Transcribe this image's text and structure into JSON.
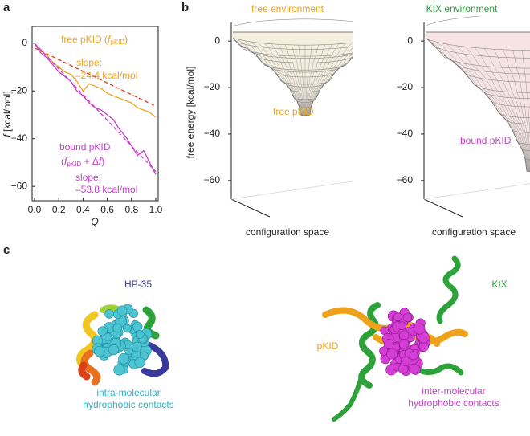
{
  "panel_labels": [
    "a",
    "b",
    "c"
  ],
  "chart_data": [
    {
      "type": "line",
      "xlabel": "Q",
      "ylabel": [
        "f",
        "[kcal/mol]"
      ],
      "xlim": [
        -0.02,
        1.02
      ],
      "ylim": [
        -66,
        7
      ],
      "xticks": [
        {
          "value": 0,
          "label": "0.0"
        },
        {
          "value": 0.2,
          "label": "0.2"
        },
        {
          "value": 0.4,
          "label": "0.4"
        },
        {
          "value": 0.6,
          "label": "0.6"
        },
        {
          "value": 0.8,
          "label": "0.8"
        },
        {
          "value": 1,
          "label": "1.0"
        }
      ],
      "yticks": [
        0,
        {
          "value": -20,
          "label": "−20"
        },
        {
          "value": -40,
          "label": "−40"
        },
        {
          "value": -60,
          "label": "−60"
        }
      ],
      "x": [
        0,
        0.05,
        0.1,
        0.15,
        0.2,
        0.25,
        0.3,
        0.35,
        0.4,
        0.45,
        0.5,
        0.55,
        0.6,
        0.65,
        0.7,
        0.75,
        0.8,
        0.85,
        0.9,
        0.95,
        1
      ],
      "series": [
        {
          "color": "#eea21b",
          "values": [
            0,
            -3,
            -5,
            -8,
            -10,
            -12,
            -13,
            -16,
            -20,
            -17,
            -18,
            -19,
            -21,
            -22,
            -23,
            -24,
            -25,
            -27,
            -28,
            -29,
            -31
          ]
        },
        {
          "color": "#c63fc6",
          "values": [
            0,
            -4,
            -6,
            -9,
            -12,
            -14,
            -16,
            -20,
            -22,
            -25,
            -27,
            -28,
            -30,
            -32,
            -36,
            -39,
            -43,
            -47,
            -45,
            -50,
            -55
          ]
        },
        {
          "color": "#d6431a",
          "dashed": true,
          "x": [
            0,
            1
          ],
          "values": [
            -2,
            -26.4
          ]
        },
        {
          "color": "#c63fc6",
          "dashed": true,
          "x": [
            0,
            1
          ],
          "values": [
            0,
            -53.8
          ]
        }
      ],
      "annotations": {
        "free": [
          "free pKID (",
          "f",
          "pKID",
          ")"
        ],
        "free_slope": [
          "slope:",
          "–24.4 kcal/mol"
        ],
        "bound": [
          "bound pKID",
          "(",
          "f",
          "pKID",
          " + Δ",
          "f",
          ")"
        ],
        "bound_slope": [
          "slope:",
          "–53.8 kcal/mol"
        ]
      }
    },
    {
      "type": "surface",
      "title": "free environment",
      "title_color": "#eea21b",
      "ylabel": "free energy [kcal/mol]",
      "xlabel": "configuration space",
      "label": "free pKID",
      "label_color": "#eea21b",
      "surface_color": "#f4eedf",
      "ylim": [
        -68,
        8
      ],
      "yticks": [
        0,
        {
          "value": -20,
          "label": "−20"
        },
        {
          "value": -40,
          "label": "−40"
        },
        {
          "value": -60,
          "label": "−60"
        }
      ]
    },
    {
      "type": "surface",
      "title": "KIX environment",
      "title_color": "#2e9e3e",
      "xlabel": "configuration space",
      "label": "bound pKID",
      "label_color": "#c63fc6",
      "surface_color": "#f6e4e4",
      "ylim": [
        -68,
        8
      ],
      "yticks": [
        0,
        {
          "value": -20,
          "label": "−20"
        },
        {
          "value": -40,
          "label": "−40"
        },
        {
          "value": -60,
          "label": "−60"
        }
      ]
    }
  ],
  "structures": {
    "hp35": {
      "label": "HP-35",
      "contacts": [
        "intra-molecular",
        "hydrophobic contacts"
      ]
    },
    "complex": {
      "labels": [
        "KIX",
        "pKID"
      ],
      "contacts": [
        "inter-molecular",
        "hydrophobic contacts"
      ]
    }
  }
}
